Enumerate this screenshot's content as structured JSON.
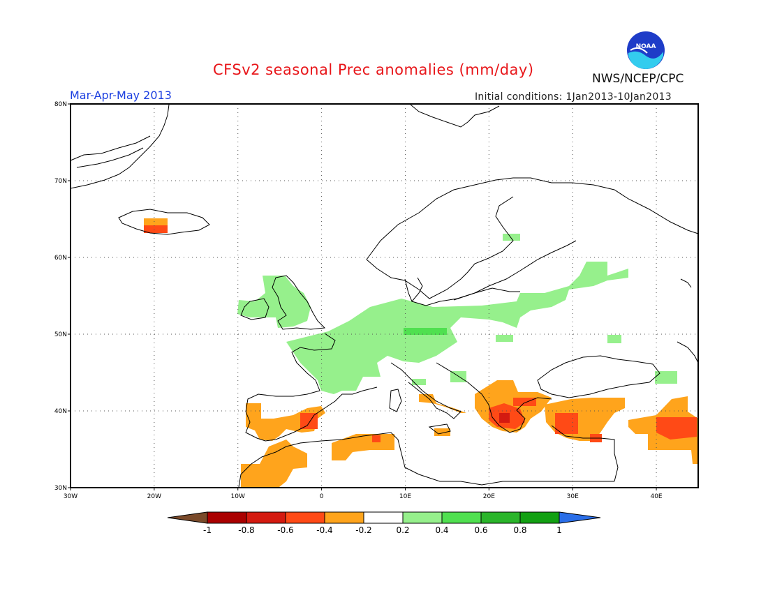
{
  "header": {
    "title": "CFSv2 seasonal Prec anomalies (mm/day)",
    "season": "Mar-Apr-May 2013",
    "initial_conditions": "Initial conditions: 1Jan2013-10Jan2013",
    "agency": "NWS/NCEP/CPC",
    "logo_text": "NOAA"
  },
  "map": {
    "lon_labels": [
      "30W",
      "20W",
      "10W",
      "0",
      "10E",
      "20E",
      "30E",
      "40E"
    ],
    "lat_labels": [
      "80N",
      "70N",
      "60N",
      "50N",
      "40N",
      "30N"
    ],
    "lon_range": [
      -30,
      45
    ],
    "lat_range": [
      30,
      80
    ],
    "grid": "dotted every 10 degrees",
    "anomaly_regions": [
      {
        "name": "Iceland",
        "class": "-0.4 to -0.6"
      },
      {
        "name": "Iberia",
        "class": "-0.2 to -0.6"
      },
      {
        "name": "North Africa",
        "class": "-0.2 to -0.6"
      },
      {
        "name": "Greece",
        "class": "-0.2 to -0.8"
      },
      {
        "name": "Turkey",
        "class": "-0.2 to -0.6"
      },
      {
        "name": "Middle East",
        "class": "-0.2 to -0.6"
      },
      {
        "name": "Western & Central Europe",
        "class": "0.2 to 0.4"
      },
      {
        "name": "British Isles",
        "class": "0.2 to 0.4"
      }
    ]
  },
  "colorbar": {
    "ticks": [
      "-1",
      "-0.8",
      "-0.6",
      "-0.4",
      "-0.2",
      "0.2",
      "0.4",
      "0.6",
      "0.8",
      "1"
    ],
    "colors": [
      "#7a4a2a",
      "#aa0000",
      "#d41a10",
      "#ff4a16",
      "#ffa41c",
      "#ffffff",
      "#96f08c",
      "#50e050",
      "#2ab52a",
      "#12a012",
      "#2a6ee8"
    ]
  }
}
